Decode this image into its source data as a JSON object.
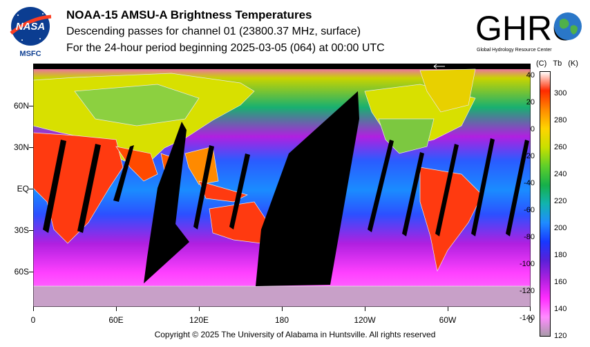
{
  "header": {
    "title": "NOAA-15 AMSU-A Brightness Temperatures",
    "subtitle_1": "Descending passes for channel 01 (23800.37 MHz, surface)",
    "subtitle_2": "For the 24-hour period beginning 2025-03-05 (064) at 00:00 UTC"
  },
  "logos": {
    "nasa": {
      "text": "NASA",
      "label": "MSFC"
    },
    "ghrc": {
      "text": "GHRC",
      "label": "Global Hydrology Resource Center"
    }
  },
  "map": {
    "lat_labels": [
      "60N",
      "30N",
      "EQ",
      "30S",
      "60S"
    ],
    "lon_labels": [
      "0",
      "60E",
      "120E",
      "180",
      "120W",
      "60W",
      "0"
    ]
  },
  "colorbar": {
    "header_c": "(C)",
    "header_tb": "Tb",
    "header_k": "(K)",
    "celsius_ticks": [
      "40",
      "20",
      "0",
      "-20",
      "-40",
      "-60",
      "-80",
      "-100",
      "-120",
      "-140"
    ],
    "kelvin_ticks": [
      "300",
      "280",
      "260",
      "240",
      "220",
      "200",
      "180",
      "160",
      "140",
      "120"
    ],
    "colors": [
      "#ffffff",
      "#ff2a00",
      "#ff8a00",
      "#ffd400",
      "#c8e000",
      "#5fcf2a",
      "#16b04a",
      "#12b3b0",
      "#1f8cff",
      "#1838ff",
      "#5a20d8",
      "#b020e0",
      "#ff2cff",
      "#ff8cff",
      "#a89aa8"
    ]
  },
  "footer": {
    "copyright": "Copyright © 2025 The University of Alabama in Huntsville.  All rights reserved"
  }
}
